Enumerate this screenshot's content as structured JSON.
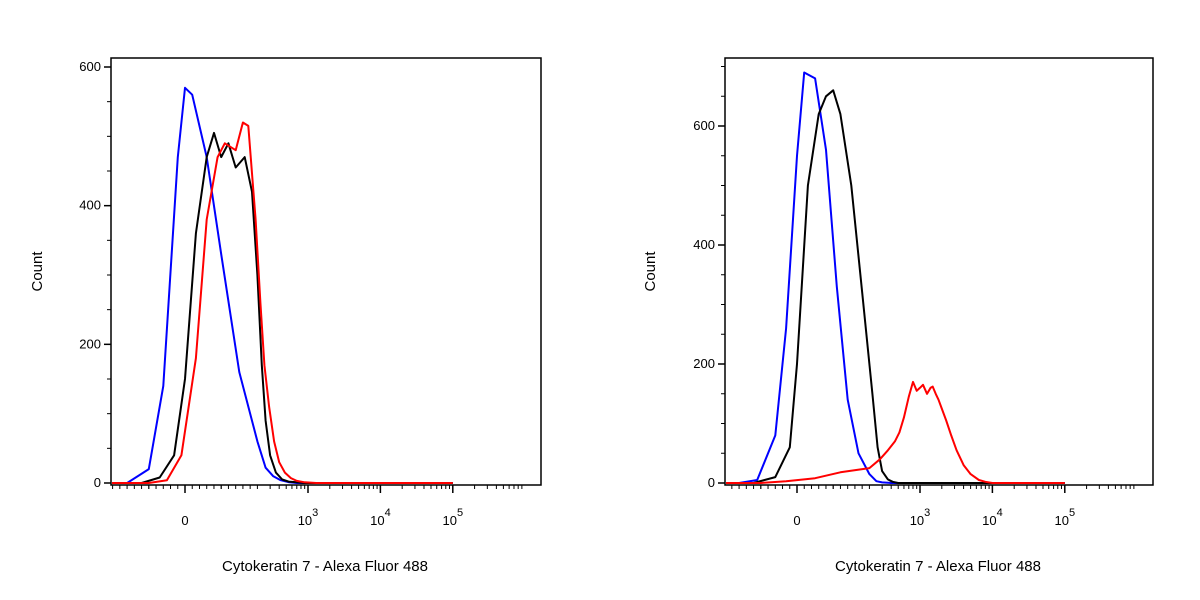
{
  "colors": {
    "isotype": "#0000ff",
    "unstained": "#000000",
    "stained": "#ff0000",
    "axis": "#000000"
  },
  "chart_data": [
    {
      "type": "line",
      "xlabel": "Cytokeratin 7 - Alexa Fluor 488",
      "ylabel": "Count",
      "x_scale": "biexponential",
      "xticks": [
        {
          "value": 0,
          "base": "0",
          "exp": ""
        },
        {
          "value": 1000,
          "base": "10",
          "exp": "3"
        },
        {
          "value": 10000,
          "base": "10",
          "exp": "4"
        },
        {
          "value": 100000,
          "base": "10",
          "exp": "5"
        }
      ],
      "ylim": [
        0,
        600
      ],
      "yticks": [
        0,
        200,
        400,
        600
      ],
      "series": [
        {
          "key": "isotype",
          "color": "#0000ff",
          "x": [
            -500,
            -160,
            -100,
            -60,
            -20,
            0,
            20,
            60,
            100,
            150,
            200,
            260,
            330,
            420,
            550,
            700,
            1000,
            100000
          ],
          "y": [
            0,
            0,
            20,
            140,
            470,
            570,
            560,
            470,
            330,
            160,
            60,
            22,
            10,
            4,
            1,
            0,
            0,
            0
          ]
        },
        {
          "key": "unstained",
          "color": "#000000",
          "x": [
            -500,
            -120,
            -70,
            -30,
            0,
            30,
            60,
            80,
            100,
            120,
            140,
            165,
            185,
            200,
            230,
            260,
            300,
            360,
            440,
            540,
            700,
            900,
            100000
          ],
          "y": [
            0,
            0,
            8,
            40,
            150,
            360,
            470,
            505,
            470,
            490,
            455,
            470,
            420,
            300,
            170,
            90,
            40,
            15,
            5,
            2,
            1,
            0,
            0
          ]
        },
        {
          "key": "stained",
          "color": "#ff0000",
          "x": [
            -500,
            -100,
            -50,
            -10,
            30,
            60,
            90,
            110,
            140,
            160,
            175,
            195,
            220,
            250,
            290,
            340,
            400,
            480,
            580,
            700,
            900,
            1300,
            100000
          ],
          "y": [
            0,
            0,
            4,
            40,
            180,
            380,
            470,
            490,
            480,
            520,
            515,
            380,
            260,
            170,
            110,
            60,
            30,
            15,
            7,
            3,
            1,
            0,
            0
          ]
        }
      ]
    },
    {
      "type": "line",
      "xlabel": "Cytokeratin 7 - Alexa Fluor 488",
      "ylabel": "Count",
      "x_scale": "biexponential",
      "xticks": [
        {
          "value": 0,
          "base": "0",
          "exp": ""
        },
        {
          "value": 1000,
          "base": "10",
          "exp": "3"
        },
        {
          "value": 10000,
          "base": "10",
          "exp": "4"
        },
        {
          "value": 100000,
          "base": "10",
          "exp": "5"
        }
      ],
      "ylim": [
        0,
        700
      ],
      "yticks": [
        0,
        200,
        400,
        600
      ],
      "series": [
        {
          "key": "isotype",
          "color": "#0000ff",
          "x": [
            -500,
            -160,
            -110,
            -60,
            -30,
            0,
            20,
            50,
            80,
            110,
            140,
            170,
            200,
            250,
            300,
            400,
            100000
          ],
          "y": [
            0,
            0,
            5,
            80,
            260,
            550,
            690,
            680,
            560,
            330,
            140,
            50,
            15,
            3,
            1,
            0,
            0
          ]
        },
        {
          "key": "unstained",
          "color": "#000000",
          "x": [
            -500,
            -120,
            -60,
            -20,
            0,
            30,
            60,
            80,
            100,
            120,
            150,
            180,
            220,
            260,
            300,
            360,
            420,
            500,
            100000
          ],
          "y": [
            0,
            0,
            10,
            60,
            200,
            500,
            620,
            650,
            660,
            620,
            500,
            320,
            150,
            60,
            20,
            6,
            2,
            0,
            0
          ]
        },
        {
          "key": "stained",
          "color": "#ff0000",
          "x": [
            -500,
            -100,
            -30,
            50,
            120,
            200,
            280,
            360,
            450,
            520,
            600,
            700,
            800,
            900,
            1000,
            1100,
            1250,
            1400,
            1500,
            1650,
            1800,
            2000,
            2300,
            2700,
            3200,
            4000,
            5000,
            6500,
            8000,
            10000,
            100000
          ],
          "y": [
            0,
            0,
            3,
            8,
            18,
            25,
            40,
            55,
            70,
            85,
            110,
            145,
            170,
            155,
            160,
            165,
            150,
            160,
            162,
            150,
            140,
            125,
            105,
            80,
            55,
            30,
            15,
            5,
            2,
            0,
            0
          ]
        }
      ]
    }
  ]
}
